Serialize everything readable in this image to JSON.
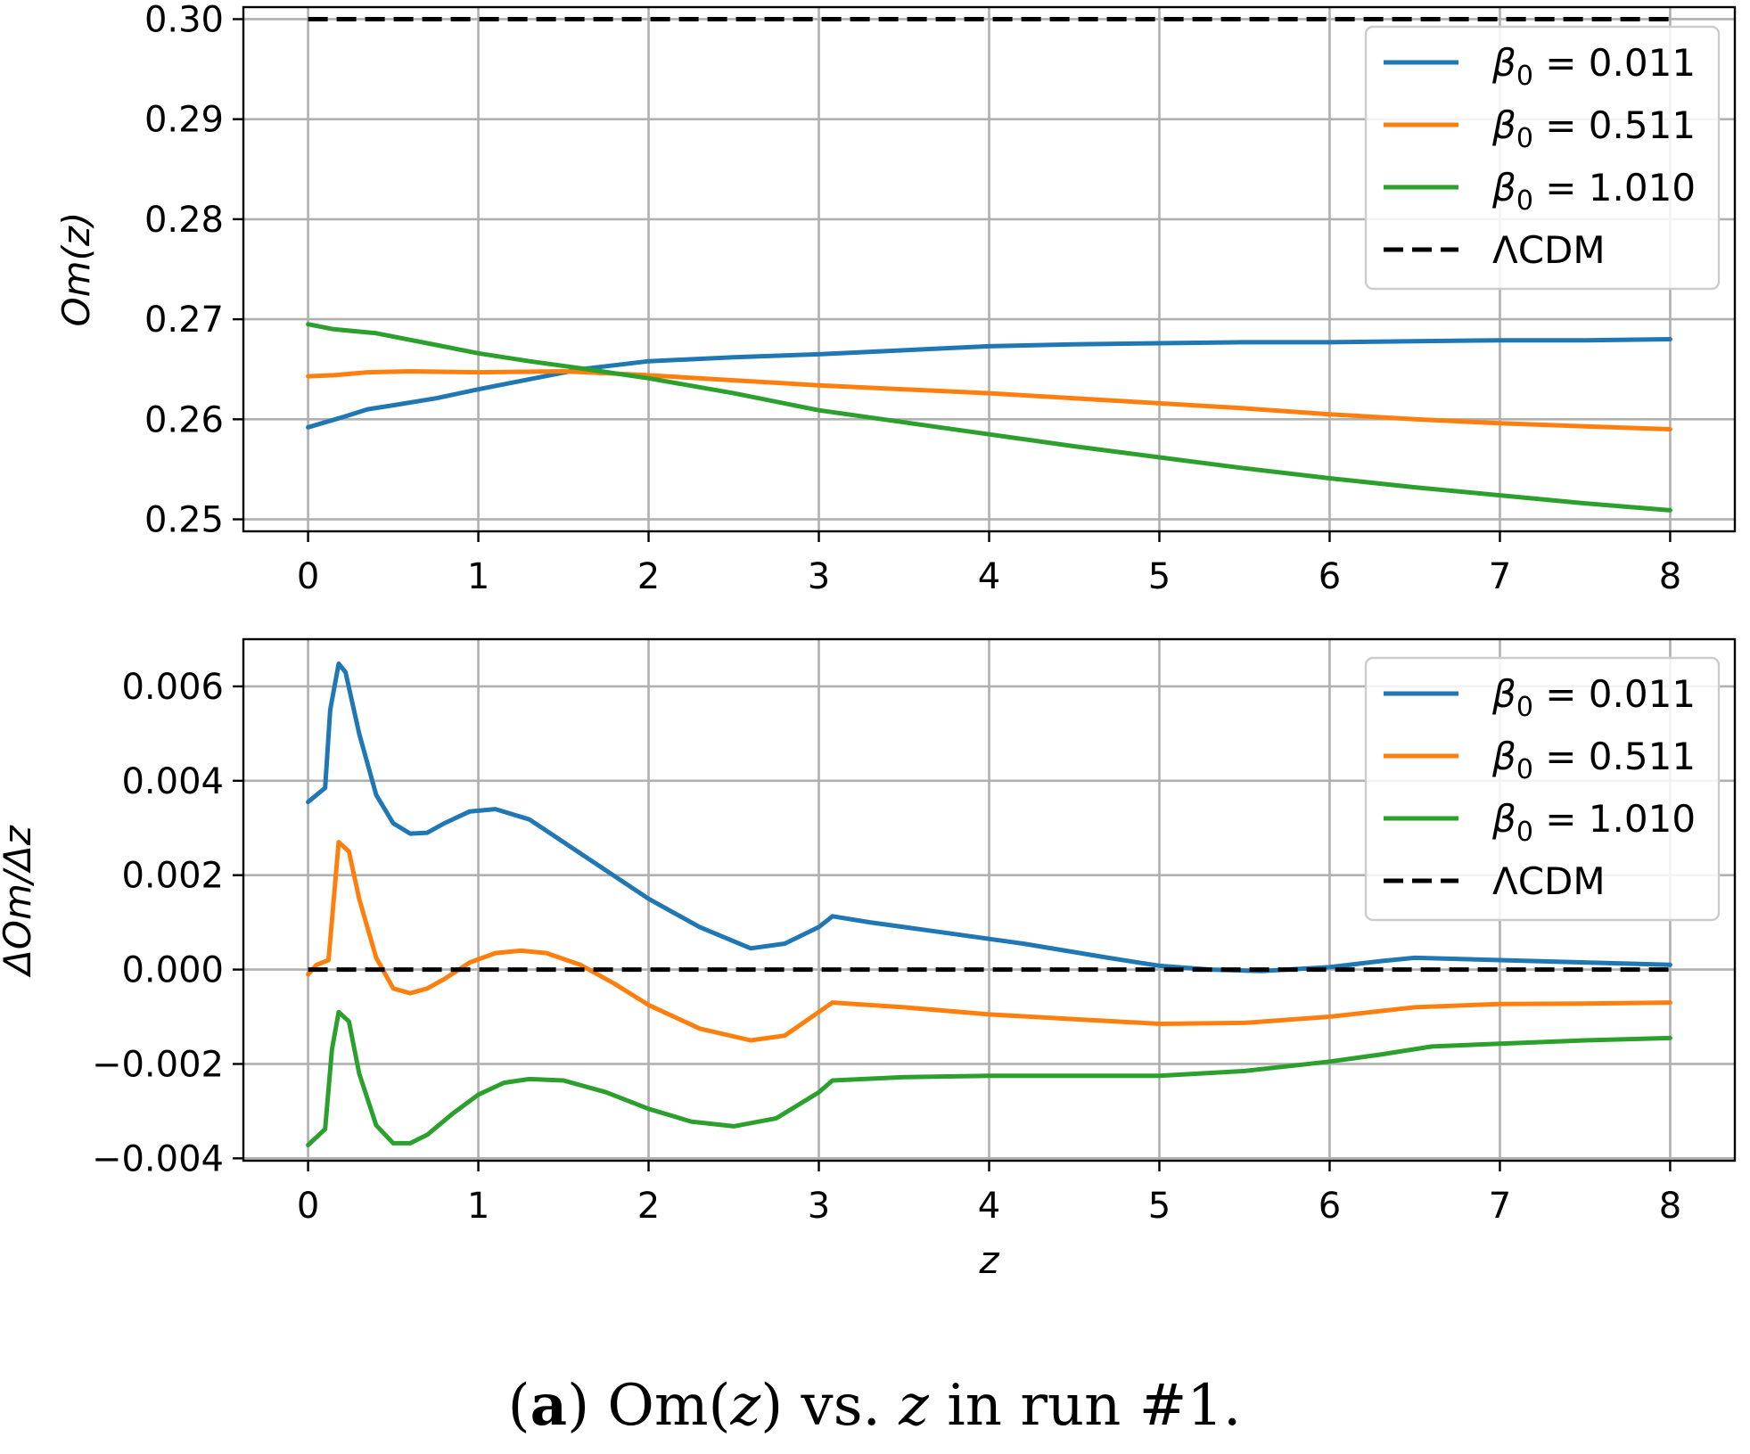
{
  "caption": {
    "label": "a",
    "open_paren": "(",
    "close_paren": ")",
    "text_part1": " Om(",
    "z_symbol": "z",
    "text_part2": ") vs. ",
    "text_part3": " in run #1."
  },
  "colors": {
    "blue": "#1f77b4",
    "orange": "#ff7f0e",
    "green": "#2ca02c",
    "lcdm": "#000000",
    "grid": "#b0b0b0"
  },
  "chart_data": [
    {
      "type": "line",
      "id": "top",
      "ylabel": "Om(z)",
      "xlabel": "",
      "xlim": [
        -0.38,
        8.38
      ],
      "ylim": [
        0.2488,
        0.3012
      ],
      "xticks": [
        0,
        1,
        2,
        3,
        4,
        5,
        6,
        7,
        8
      ],
      "xticklabels": [
        "0",
        "1",
        "2",
        "3",
        "4",
        "5",
        "6",
        "7",
        "8"
      ],
      "yticks": [
        0.25,
        0.26,
        0.27,
        0.28,
        0.29,
        0.3
      ],
      "yticklabels": [
        "0.25",
        "0.26",
        "0.27",
        "0.28",
        "0.29",
        "0.30"
      ],
      "grid": true,
      "legend_position": "top-right",
      "series": [
        {
          "name": "β₀ = 0.011",
          "label_prefix": "β",
          "label_sub": "0",
          "label_value": " = 0.011",
          "color": "#1f77b4",
          "dashed": false,
          "x": [
            0,
            0.1,
            0.2,
            0.35,
            0.5,
            0.75,
            1.0,
            1.3,
            1.6,
            2.0,
            2.5,
            3.0,
            3.5,
            4.0,
            4.5,
            5.0,
            5.5,
            6.0,
            6.5,
            7.0,
            7.5,
            8.0
          ],
          "y": [
            0.2592,
            0.2597,
            0.2602,
            0.261,
            0.2614,
            0.2621,
            0.263,
            0.264,
            0.265,
            0.2658,
            0.2662,
            0.2665,
            0.2669,
            0.2673,
            0.2675,
            0.2676,
            0.2677,
            0.2677,
            0.2678,
            0.2679,
            0.2679,
            0.268
          ]
        },
        {
          "name": "β₀ = 0.511",
          "label_prefix": "β",
          "label_sub": "0",
          "label_value": " = 0.511",
          "color": "#ff7f0e",
          "dashed": false,
          "x": [
            0,
            0.15,
            0.35,
            0.6,
            1.0,
            1.5,
            2.0,
            2.5,
            3.0,
            3.5,
            4.0,
            4.5,
            5.0,
            5.5,
            6.0,
            6.5,
            7.0,
            7.5,
            8.0
          ],
          "y": [
            0.2643,
            0.2644,
            0.2647,
            0.2648,
            0.2647,
            0.2648,
            0.2644,
            0.2639,
            0.2634,
            0.263,
            0.2626,
            0.2621,
            0.2616,
            0.2611,
            0.2605,
            0.26,
            0.2596,
            0.2593,
            0.259
          ]
        },
        {
          "name": "β₀ = 1.010",
          "label_prefix": "β",
          "label_sub": "0",
          "label_value": " = 1.010",
          "color": "#2ca02c",
          "dashed": false,
          "x": [
            0,
            0.15,
            0.4,
            0.7,
            1.0,
            1.3,
            1.6,
            2.0,
            2.5,
            3.0,
            3.5,
            4.0,
            4.5,
            5.0,
            5.5,
            6.0,
            6.5,
            7.0,
            7.5,
            8.0
          ],
          "y": [
            0.2695,
            0.269,
            0.2686,
            0.2676,
            0.2666,
            0.2658,
            0.2651,
            0.2641,
            0.2626,
            0.2609,
            0.2597,
            0.2585,
            0.2573,
            0.2562,
            0.2551,
            0.2541,
            0.2532,
            0.2524,
            0.2516,
            0.2509
          ]
        },
        {
          "name": "ΛCDM",
          "label_prefix": "ΛCDM",
          "label_sub": "",
          "label_value": "",
          "color": "#000000",
          "dashed": true,
          "x": [
            0,
            8
          ],
          "y": [
            0.3,
            0.3
          ]
        }
      ]
    },
    {
      "type": "line",
      "id": "bottom",
      "ylabel": "ΔOm/Δz",
      "xlabel": "z",
      "xlim": [
        -0.38,
        8.38
      ],
      "ylim": [
        -0.00405,
        0.007
      ],
      "xticks": [
        0,
        1,
        2,
        3,
        4,
        5,
        6,
        7,
        8
      ],
      "xticklabels": [
        "0",
        "1",
        "2",
        "3",
        "4",
        "5",
        "6",
        "7",
        "8"
      ],
      "yticks": [
        -0.004,
        -0.002,
        0.0,
        0.002,
        0.004,
        0.006
      ],
      "yticklabels": [
        "−0.004",
        "−0.002",
        "0.000",
        "0.002",
        "0.004",
        "0.006"
      ],
      "grid": true,
      "legend_position": "top-right",
      "series": [
        {
          "name": "β₀ = 0.011",
          "label_prefix": "β",
          "label_sub": "0",
          "label_value": " = 0.011",
          "color": "#1f77b4",
          "dashed": false,
          "x": [
            0,
            0.1,
            0.13,
            0.18,
            0.22,
            0.3,
            0.4,
            0.5,
            0.6,
            0.7,
            0.8,
            0.95,
            1.1,
            1.3,
            1.5,
            1.75,
            2.0,
            2.3,
            2.6,
            2.8,
            3.0,
            3.08,
            3.3,
            3.7,
            4.2,
            4.7,
            5.0,
            5.3,
            5.6,
            6.0,
            6.3,
            6.5,
            7.0,
            7.5,
            8.0
          ],
          "y": [
            0.00355,
            0.00385,
            0.0055,
            0.00648,
            0.0063,
            0.005,
            0.0037,
            0.0031,
            0.00288,
            0.0029,
            0.0031,
            0.00335,
            0.0034,
            0.00318,
            0.0027,
            0.0021,
            0.0015,
            0.0009,
            0.00045,
            0.00055,
            0.0009,
            0.00113,
            0.001,
            0.0008,
            0.00055,
            0.00025,
            8e-05,
            0.0,
            -3e-05,
            5e-05,
            0.00018,
            0.00025,
            0.0002,
            0.00015,
            0.0001
          ]
        },
        {
          "name": "β₀ = 0.511",
          "label_prefix": "β",
          "label_sub": "0",
          "label_value": " = 0.511",
          "color": "#ff7f0e",
          "dashed": false,
          "x": [
            0,
            0.05,
            0.12,
            0.18,
            0.24,
            0.3,
            0.4,
            0.5,
            0.6,
            0.7,
            0.8,
            0.95,
            1.1,
            1.25,
            1.4,
            1.6,
            1.8,
            2.0,
            2.3,
            2.6,
            2.8,
            3.0,
            3.08,
            3.5,
            4.0,
            4.5,
            5.0,
            5.5,
            6.0,
            6.5,
            7.0,
            7.5,
            8.0
          ],
          "y": [
            -0.0001,
            0.0001,
            0.0002,
            0.0027,
            0.0025,
            0.0015,
            0.00025,
            -0.0004,
            -0.0005,
            -0.0004,
            -0.0002,
            0.00015,
            0.00035,
            0.0004,
            0.00035,
            0.0001,
            -0.0003,
            -0.00075,
            -0.00125,
            -0.0015,
            -0.0014,
            -0.0009,
            -0.0007,
            -0.0008,
            -0.00095,
            -0.00105,
            -0.00115,
            -0.00113,
            -0.001,
            -0.0008,
            -0.00073,
            -0.00072,
            -0.0007
          ]
        },
        {
          "name": "β₀ = 1.010",
          "label_prefix": "β",
          "label_sub": "0",
          "label_value": " = 1.010",
          "color": "#2ca02c",
          "dashed": false,
          "x": [
            0,
            0.1,
            0.14,
            0.18,
            0.24,
            0.3,
            0.4,
            0.5,
            0.6,
            0.7,
            0.85,
            1.0,
            1.15,
            1.3,
            1.5,
            1.75,
            2.0,
            2.25,
            2.5,
            2.75,
            3.0,
            3.08,
            3.5,
            4.0,
            4.5,
            5.0,
            5.5,
            6.0,
            6.3,
            6.6,
            7.0,
            7.5,
            8.0
          ],
          "y": [
            -0.00372,
            -0.00338,
            -0.0017,
            -0.0009,
            -0.0011,
            -0.0022,
            -0.0033,
            -0.00368,
            -0.00368,
            -0.0035,
            -0.00305,
            -0.00265,
            -0.0024,
            -0.00232,
            -0.00235,
            -0.0026,
            -0.00295,
            -0.00322,
            -0.00332,
            -0.00315,
            -0.0026,
            -0.00235,
            -0.00228,
            -0.00225,
            -0.00225,
            -0.00225,
            -0.00215,
            -0.00195,
            -0.0018,
            -0.00163,
            -0.00157,
            -0.0015,
            -0.00145
          ]
        },
        {
          "name": "ΛCDM",
          "label_prefix": "ΛCDM",
          "label_sub": "",
          "label_value": "",
          "color": "#000000",
          "dashed": true,
          "x": [
            0,
            8
          ],
          "y": [
            0.0,
            0.0
          ]
        }
      ]
    }
  ]
}
